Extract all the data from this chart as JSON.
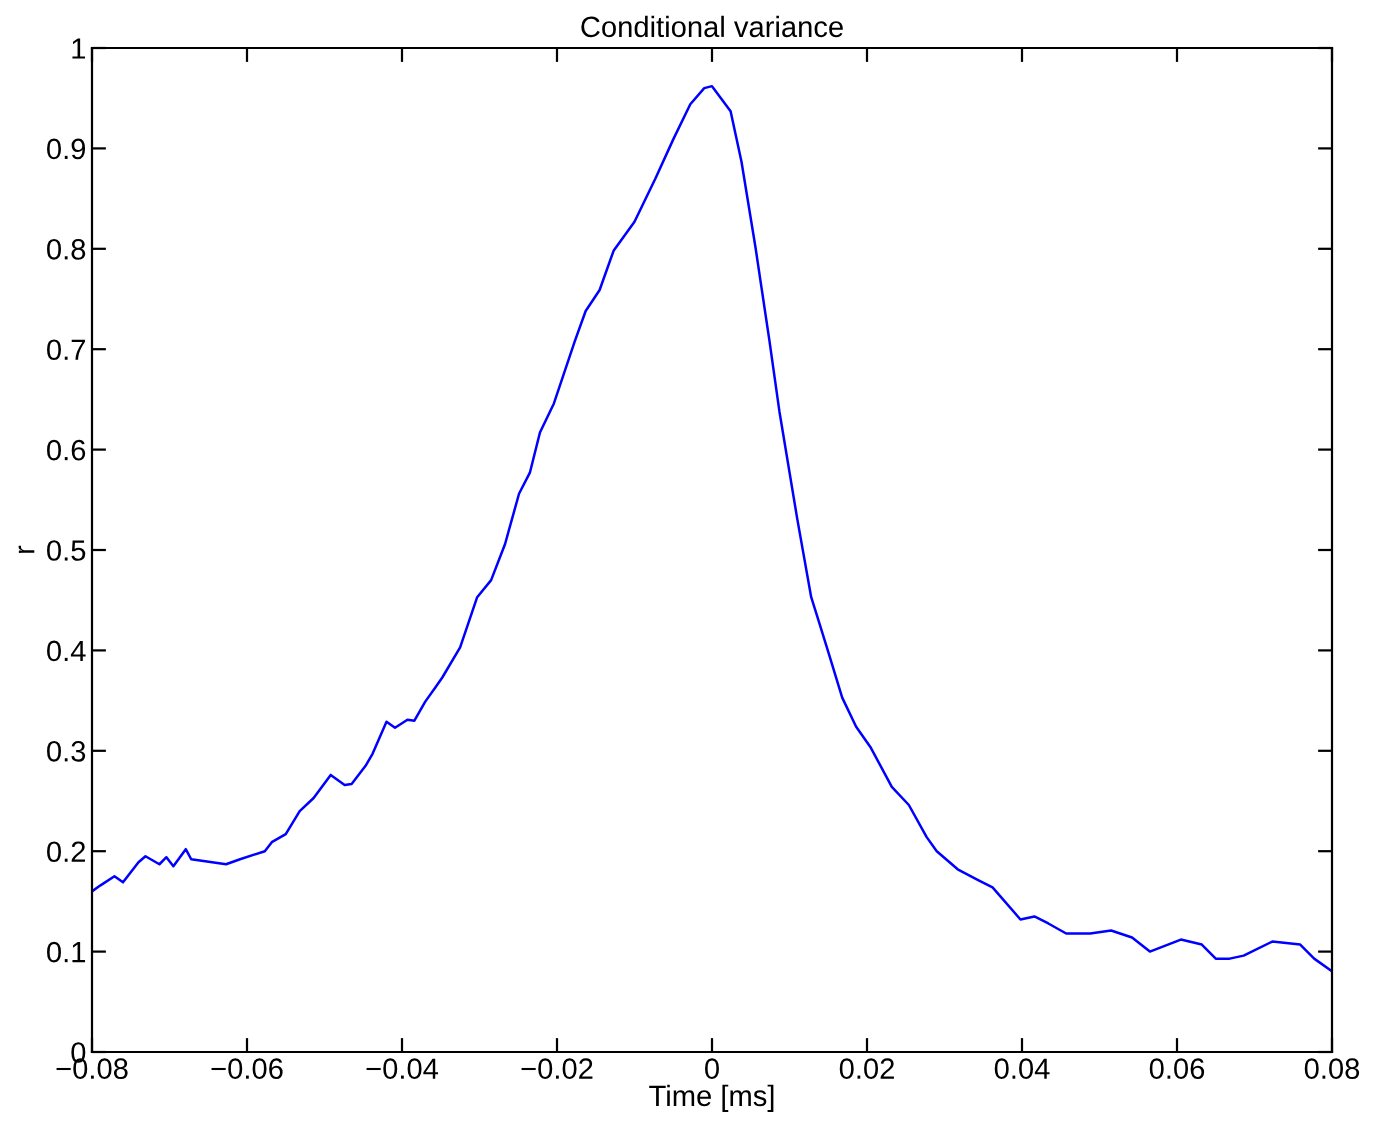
{
  "chart_data": {
    "type": "line",
    "title": "Conditional variance",
    "xlabel": "Time [ms]",
    "ylabel": "r",
    "xlim": [
      -0.08,
      0.08
    ],
    "ylim": [
      0,
      1
    ],
    "xticks": [
      {
        "value": -0.08,
        "label": "−0.08"
      },
      {
        "value": -0.06,
        "label": "−0.06"
      },
      {
        "value": -0.04,
        "label": "−0.04"
      },
      {
        "value": -0.02,
        "label": "−0.02"
      },
      0,
      0.02,
      0.04,
      0.06,
      0.08
    ],
    "yticks": [
      0,
      0.1,
      0.2,
      0.3,
      0.4,
      0.5,
      0.6,
      0.7,
      0.8,
      0.9,
      1
    ],
    "grid": false,
    "legend": false,
    "series": [
      {
        "color": "#0000ff",
        "x": [
          -0.08,
          -0.0789,
          -0.0771,
          -0.076,
          -0.074,
          -0.0731,
          -0.0713,
          -0.0704,
          -0.0695,
          -0.0679,
          -0.0672,
          -0.0654,
          -0.0627,
          -0.0609,
          -0.0577,
          -0.0568,
          -0.055,
          -0.0532,
          -0.0514,
          -0.0492,
          -0.0474,
          -0.0465,
          -0.0447,
          -0.0438,
          -0.042,
          -0.0409,
          -0.0393,
          -0.0384,
          -0.037,
          -0.0357,
          -0.0348,
          -0.0325,
          -0.0303,
          -0.0285,
          -0.0267,
          -0.0249,
          -0.0235,
          -0.0222,
          -0.0204,
          -0.0177,
          -0.0163,
          -0.0145,
          -0.0127,
          -0.01,
          -0.0073,
          -0.005,
          -0.0028,
          -0.001,
          0.0,
          0.0024,
          0.0038,
          0.0056,
          0.0074,
          0.0087,
          0.011,
          0.0128,
          0.0137,
          0.0151,
          0.0168,
          0.0186,
          0.0205,
          0.0232,
          0.0254,
          0.0277,
          0.029,
          0.0317,
          0.0344,
          0.0362,
          0.0398,
          0.0416,
          0.0434,
          0.0457,
          0.0488,
          0.0515,
          0.0542,
          0.0565,
          0.0605,
          0.0632,
          0.065,
          0.0668,
          0.0686,
          0.0723,
          0.0759,
          0.0777,
          0.0799
        ],
        "values": [
          0.16,
          0.166,
          0.175,
          0.169,
          0.189,
          0.195,
          0.187,
          0.194,
          0.185,
          0.202,
          0.192,
          0.19,
          0.187,
          0.192,
          0.2,
          0.209,
          0.217,
          0.24,
          0.253,
          0.276,
          0.266,
          0.267,
          0.285,
          0.297,
          0.329,
          0.323,
          0.331,
          0.33,
          0.349,
          0.363,
          0.373,
          0.403,
          0.453,
          0.47,
          0.506,
          0.556,
          0.577,
          0.617,
          0.646,
          0.708,
          0.738,
          0.759,
          0.798,
          0.827,
          0.87,
          0.909,
          0.944,
          0.96,
          0.962,
          0.937,
          0.887,
          0.802,
          0.709,
          0.638,
          0.531,
          0.453,
          0.431,
          0.396,
          0.353,
          0.324,
          0.303,
          0.264,
          0.246,
          0.214,
          0.2,
          0.182,
          0.171,
          0.164,
          0.132,
          0.135,
          0.128,
          0.118,
          0.118,
          0.121,
          0.114,
          0.1,
          0.112,
          0.107,
          0.093,
          0.093,
          0.096,
          0.11,
          0.107,
          0.093,
          0.081
        ]
      }
    ]
  }
}
